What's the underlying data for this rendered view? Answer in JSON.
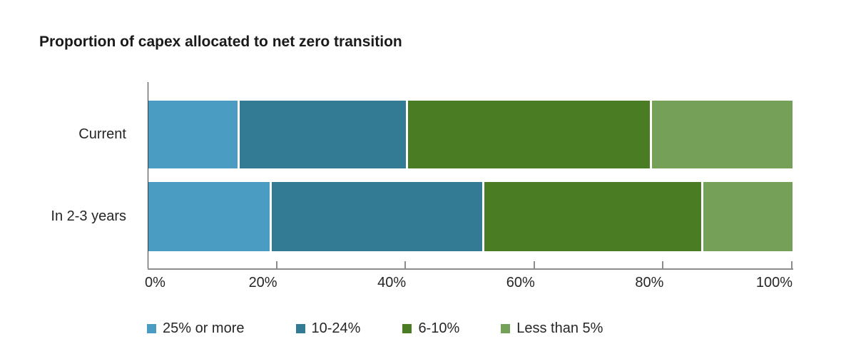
{
  "title": "Proportion of capex allocated to net zero transition",
  "colors": {
    "background": "#ffffff",
    "title_text": "#1a1a1a",
    "label_text": "#262626",
    "x_axis_line": "#8c8c8c",
    "y_axis_line": "#3d3d3d",
    "segment_gap": "#ffffff"
  },
  "chart_data": {
    "type": "bar",
    "subtype": "horizontal_stacked",
    "title": "Proportion of capex allocated to net zero transition",
    "categories": [
      "Current",
      "In 2-3 years"
    ],
    "series": [
      {
        "name": "25% or more",
        "color": "#4a9cc3",
        "values": [
          14,
          19
        ]
      },
      {
        "name": "10-24%",
        "color": "#337a95",
        "values": [
          26,
          33
        ]
      },
      {
        "name": "6-10%",
        "color": "#4a7d23",
        "values": [
          38,
          34
        ]
      },
      {
        "name": "Less than 5%",
        "color": "#74a057",
        "values": [
          22,
          14
        ]
      }
    ],
    "x_axis": {
      "min": 0,
      "max": 100,
      "unit": "%",
      "tick_labels": [
        "0%",
        "20%",
        "40%",
        "60%",
        "80%",
        "100%"
      ]
    },
    "legend": {
      "position": "bottom",
      "entries": [
        "25% or more",
        "10-24%",
        "6-10%",
        "Less than 5%"
      ]
    },
    "gridlines": false
  }
}
